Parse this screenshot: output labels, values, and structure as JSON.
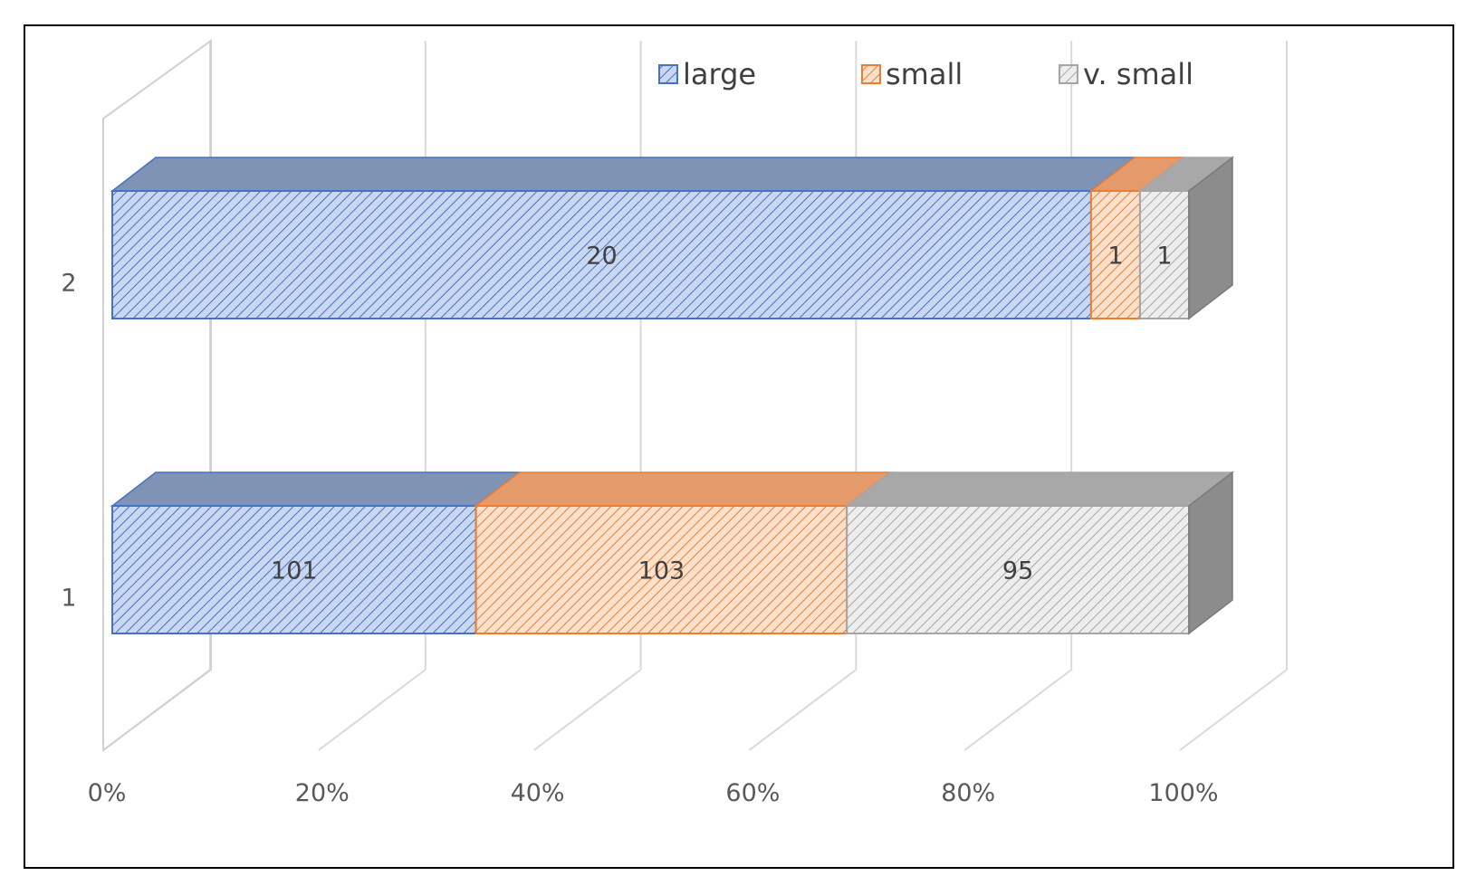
{
  "chart_data": {
    "type": "bar",
    "orientation": "horizontal",
    "stacked": "percent",
    "three_d": true,
    "categories": [
      "1",
      "2"
    ],
    "series": [
      {
        "name": "large",
        "values": [
          101,
          20
        ],
        "color": "#4472C4",
        "face": "#C9D7F0",
        "top": "#7F93B5",
        "hatch": "#4472C4"
      },
      {
        "name": "small",
        "values": [
          103,
          1
        ],
        "color": "#ED7D31",
        "face": "#FBE0CC",
        "top": "#E59A6C",
        "hatch": "#ED7D31"
      },
      {
        "name": "v. small",
        "values": [
          95,
          1
        ],
        "color": "#A5A5A5",
        "face": "#EDEDED",
        "top": "#A8A8A8",
        "hatch": "#A5A5A5"
      }
    ],
    "x_ticks": [
      "0%",
      "20%",
      "40%",
      "60%",
      "80%",
      "100%"
    ],
    "xlim": [
      0,
      100
    ],
    "grid": true,
    "legend_position": "top-right"
  }
}
